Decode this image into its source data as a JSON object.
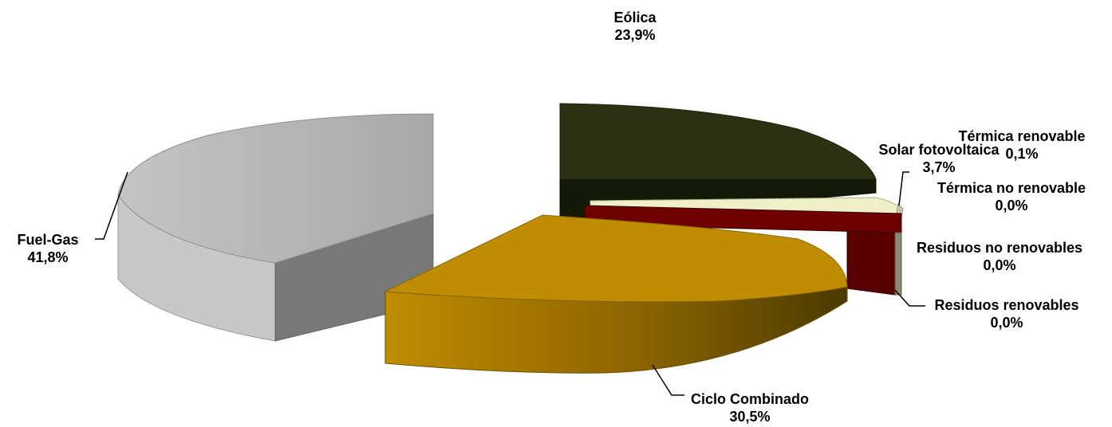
{
  "chart_data": {
    "type": "pie",
    "title": "",
    "slices": [
      {
        "label": "Eólica",
        "value_label": "23,9%",
        "value": 23.9,
        "color": "#2b3112"
      },
      {
        "label": "Térmica renovable",
        "value_label": "0,1%",
        "value": 0.1,
        "color": "#c8c8a8"
      },
      {
        "label": "Solar fotovoltaica",
        "value_label": "3,7%",
        "value": 3.7,
        "color": "#f0f0c8"
      },
      {
        "label": "Térmica no renovable",
        "value_label": "0,0%",
        "value": 0.0,
        "color": "#5a0a0a"
      },
      {
        "label": "Residuos no renovables",
        "value_label": "0,0%",
        "value": 0.0,
        "color": "#6e0000"
      },
      {
        "label": "Residuos renovables",
        "value_label": "0,0%",
        "value": 0.0,
        "color": "#560000"
      },
      {
        "label": "Ciclo Combinado",
        "value_label": "30,5%",
        "value": 30.5,
        "color": "#c08c00"
      },
      {
        "label": "Fuel-Gas",
        "value_label": "41,8%",
        "value": 41.8,
        "color": "#b4b4b4"
      }
    ]
  }
}
